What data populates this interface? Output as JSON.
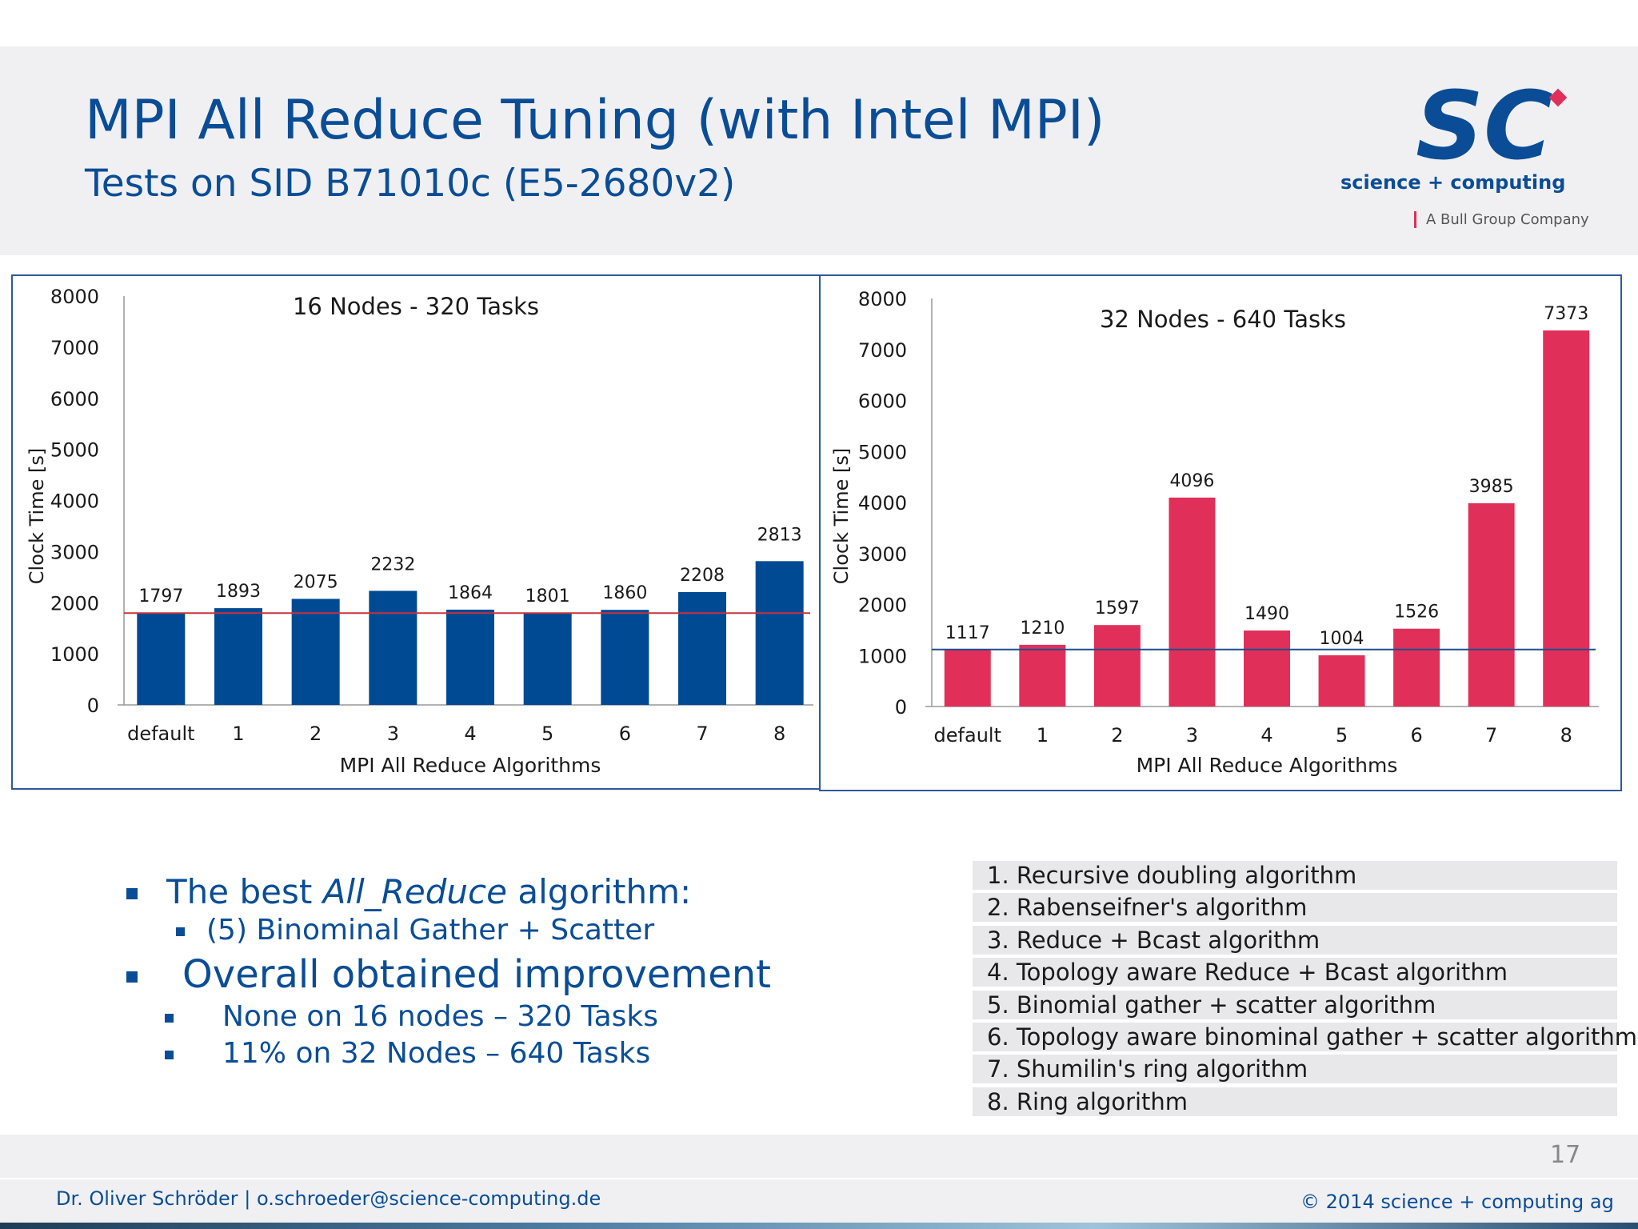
{
  "header": {
    "title": "MPI All Reduce Tuning (with Intel MPI)",
    "subtitle": "Tests on SID B71010c (E5-2680v2)"
  },
  "logo": {
    "mark": "SC",
    "brand": "science + computing",
    "tagline": "A Bull Group Company"
  },
  "chart_data": [
    {
      "type": "bar",
      "title": "16 Nodes - 320 Tasks",
      "xlabel": "MPI All Reduce Algorithms",
      "ylabel": "Clock Time [s]",
      "ylim": [
        0,
        8000
      ],
      "yticks": [
        0,
        1000,
        2000,
        3000,
        4000,
        5000,
        6000,
        7000,
        8000
      ],
      "categories": [
        "default",
        "1",
        "2",
        "3",
        "4",
        "5",
        "6",
        "7",
        "8"
      ],
      "values": [
        1797,
        1893,
        2075,
        2232,
        1864,
        1801,
        1860,
        2208,
        2813
      ],
      "reference_line": 1797,
      "bar_color": "#004a93",
      "line_color": "#c8323c"
    },
    {
      "type": "bar",
      "title": "32 Nodes - 640 Tasks",
      "xlabel": "MPI All Reduce Algorithms",
      "ylabel": "Clock Time [s]",
      "ylim": [
        0,
        8000
      ],
      "yticks": [
        0,
        1000,
        2000,
        3000,
        4000,
        5000,
        6000,
        7000,
        8000
      ],
      "categories": [
        "default",
        "1",
        "2",
        "3",
        "4",
        "5",
        "6",
        "7",
        "8"
      ],
      "values": [
        1117,
        1210,
        1597,
        4096,
        1490,
        1004,
        1526,
        3985,
        7373
      ],
      "reference_line": 1117,
      "bar_color": "#e0305a",
      "line_color": "#1f4e8c"
    }
  ],
  "bullets": [
    {
      "pre": "The best ",
      "em": "All_Reduce",
      "post": " algorithm:",
      "level": 1
    },
    {
      "text": "(5) Binominal Gather + Scatter",
      "level": 2
    },
    {
      "text": "Overall obtained improvement",
      "level": 1
    },
    {
      "text": "None on 16 nodes – 320 Tasks",
      "level": 2
    },
    {
      "text": "11% on 32 Nodes – 640 Tasks",
      "level": 2
    }
  ],
  "algorithms": [
    "1. Recursive doubling algorithm",
    "2. Rabenseifner's algorithm",
    "3. Reduce + Bcast algorithm",
    "4. Topology aware Reduce + Bcast algorithm",
    "5. Binomial gather + scatter algorithm",
    "6. Topology aware binominal gather + scatter algorithm",
    "7. Shumilin's ring algorithm",
    "8. Ring algorithm"
  ],
  "page_number": "17",
  "footer": {
    "left": "Dr. Oliver Schröder  |  o.schroeder@science-computing.de",
    "right": "© 2014 science +  computing ag"
  }
}
